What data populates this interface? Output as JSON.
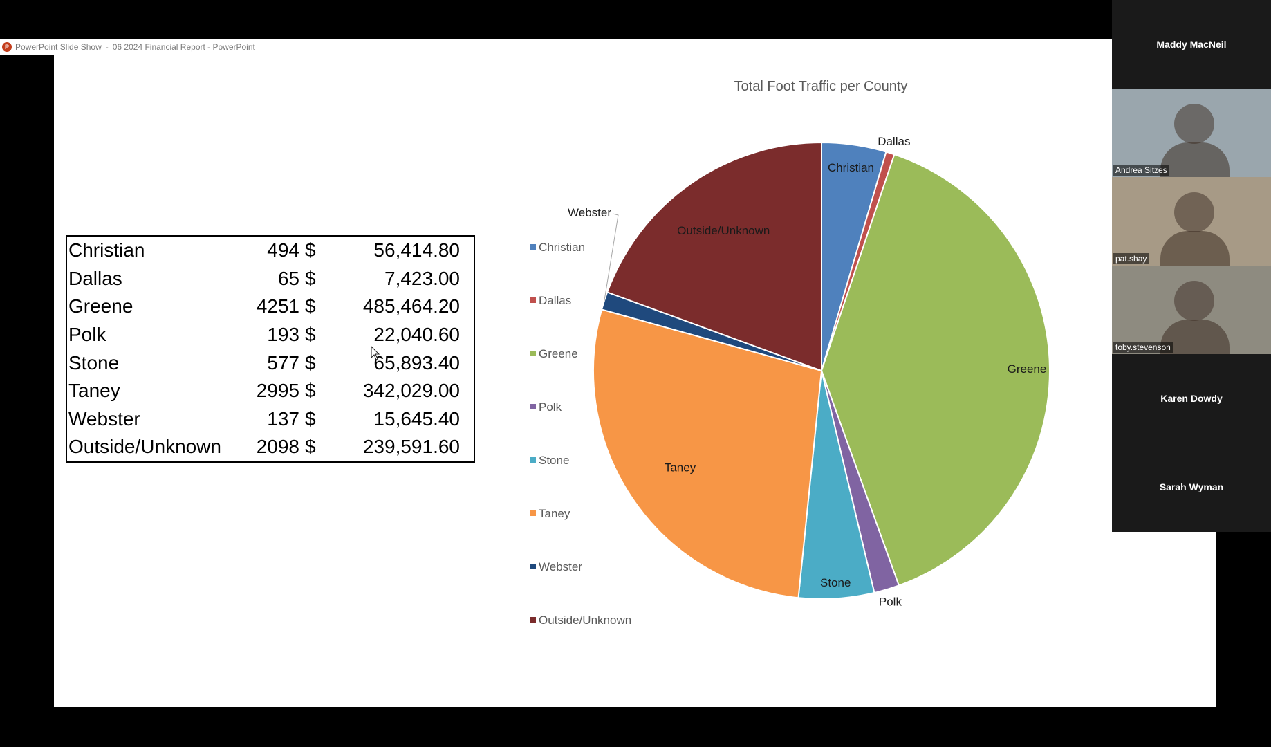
{
  "window": {
    "app": "PowerPoint Slide Show",
    "separator": "-",
    "document_title": "06 2024 Financial Report - PowerPoint"
  },
  "table": {
    "rows": [
      {
        "county": "Christian",
        "count": "494",
        "currency": "$",
        "amount": "56,414.80"
      },
      {
        "county": "Dallas",
        "count": "65",
        "currency": "$",
        "amount": "7,423.00"
      },
      {
        "county": "Greene",
        "count": "4251",
        "currency": "$",
        "amount": "485,464.20"
      },
      {
        "county": "Polk",
        "count": "193",
        "currency": "$",
        "amount": "22,040.60"
      },
      {
        "county": "Stone",
        "count": "577",
        "currency": "$",
        "amount": "65,893.40"
      },
      {
        "county": "Taney",
        "count": "2995",
        "currency": "$",
        "amount": "342,029.00"
      },
      {
        "county": "Webster",
        "count": "137",
        "currency": "$",
        "amount": "15,645.40"
      },
      {
        "county": "Outside/Unknown",
        "count": "2098",
        "currency": "$",
        "amount": "239,591.60"
      }
    ]
  },
  "chart_data": {
    "type": "pie",
    "title": "Total Foot Traffic per County",
    "categories": [
      "Christian",
      "Dallas",
      "Greene",
      "Polk",
      "Stone",
      "Taney",
      "Webster",
      "Outside/Unknown"
    ],
    "values": [
      494,
      65,
      4251,
      193,
      577,
      2995,
      137,
      2098
    ],
    "colors": [
      "#4f81bd",
      "#c0504d",
      "#9bbb59",
      "#8064a2",
      "#4bacc6",
      "#f79646",
      "#1f497d",
      "#7b2c2c"
    ],
    "data_labels": [
      "Christian",
      "Dallas",
      "Greene",
      "Polk",
      "Stone",
      "Taney",
      "Webster",
      "Outside/Unknown"
    ],
    "legend_position": "left"
  },
  "participants": [
    {
      "name": "Maddy MacNeil",
      "video": false
    },
    {
      "name": "Andrea Sitzes",
      "video": true,
      "bg": "#9aa6ad"
    },
    {
      "name": "pat.shay",
      "video": true,
      "bg": "#a79a86"
    },
    {
      "name": "toby.stevenson",
      "video": true,
      "bg": "#8e8b80"
    },
    {
      "name": "Karen Dowdy",
      "video": false
    },
    {
      "name": "Sarah Wyman",
      "video": false
    }
  ]
}
